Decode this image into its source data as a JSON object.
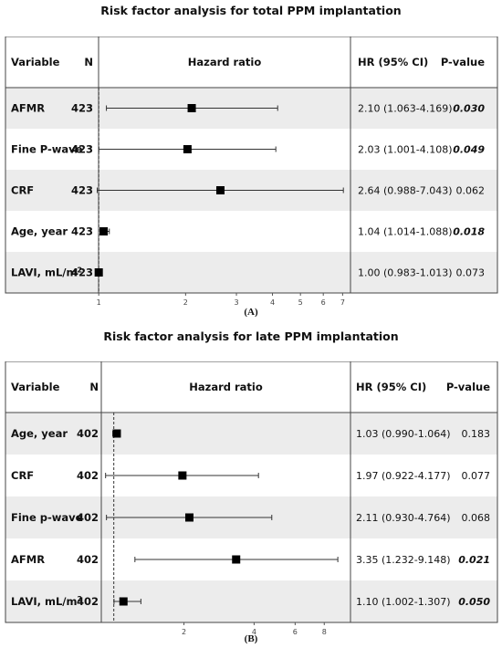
{
  "chart_data": [
    {
      "type": "forest",
      "title": "Risk factor analysis for total PPM implantation",
      "panel_label": "(A)",
      "headers": {
        "variable": "Variable",
        "n": "N",
        "plot": "Hazard ratio",
        "hr": "HR (95% CI)",
        "p": "P-value"
      },
      "x_scale": "log",
      "xlim": [
        0.97,
        7.4
      ],
      "x_ticks": [
        1,
        2,
        3,
        4,
        5,
        6,
        7
      ],
      "x_tick_labels": [
        "1",
        "2",
        "3",
        "4",
        "5",
        "6",
        "7"
      ],
      "reference_line": 1,
      "rows": [
        {
          "variable": "AFMR",
          "n": "423",
          "hr": 2.1,
          "lo": 1.063,
          "hi": 4.169,
          "hr_text": "2.10 (1.063-4.169)",
          "p": "0.030",
          "significant": true
        },
        {
          "variable": "Fine P-wave",
          "n": "423",
          "hr": 2.03,
          "lo": 1.001,
          "hi": 4.108,
          "hr_text": "2.03 (1.001-4.108)",
          "p": "0.049",
          "significant": true
        },
        {
          "variable": "CRF",
          "n": "423",
          "hr": 2.64,
          "lo": 0.988,
          "hi": 7.043,
          "hr_text": "2.64 (0.988-7.043)",
          "p": "0.062",
          "significant": false
        },
        {
          "variable": "Age, year",
          "n": "423",
          "hr": 1.04,
          "lo": 1.014,
          "hi": 1.088,
          "hr_text": "1.04 (1.014-1.088)",
          "p": "0.018",
          "significant": true
        },
        {
          "variable": "LAVI, mL/m",
          "superscript": "2",
          "n": "423",
          "hr": 1.0,
          "lo": 0.983,
          "hi": 1.013,
          "hr_text": "1.00 (0.983-1.013)",
          "p": "0.073",
          "significant": false
        }
      ]
    },
    {
      "type": "forest",
      "title": "Risk factor analysis for late PPM implantation",
      "panel_label": "(B)",
      "headers": {
        "variable": "Variable",
        "n": "N",
        "plot": "Hazard ratio",
        "hr": "HR (95% CI)",
        "p": "P-value"
      },
      "x_scale": "log",
      "xlim": [
        0.9,
        10
      ],
      "x_ticks": [
        2,
        4,
        6,
        8
      ],
      "x_tick_labels": [
        "2",
        "4",
        "6",
        "8"
      ],
      "reference_line": 1,
      "rows": [
        {
          "variable": "Age, year",
          "n": "402",
          "hr": 1.03,
          "lo": 0.99,
          "hi": 1.064,
          "hr_text": "1.03 (0.990-1.064)",
          "p": "0.183",
          "significant": false
        },
        {
          "variable": "CRF",
          "n": "402",
          "hr": 1.97,
          "lo": 0.922,
          "hi": 4.177,
          "hr_text": "1.97 (0.922-4.177)",
          "p": "0.077",
          "significant": false
        },
        {
          "variable": "Fine p-wave",
          "n": "402",
          "hr": 2.11,
          "lo": 0.93,
          "hi": 4.764,
          "hr_text": "2.11 (0.930-4.764)",
          "p": "0.068",
          "significant": false
        },
        {
          "variable": "AFMR",
          "n": "402",
          "hr": 3.35,
          "lo": 1.232,
          "hi": 9.148,
          "hr_text": "3.35 (1.232-9.148)",
          "p": "0.021",
          "significant": true
        },
        {
          "variable": "LAVI, mL/m",
          "superscript": "2",
          "n": "402",
          "hr": 1.1,
          "lo": 1.002,
          "hi": 1.307,
          "hr_text": "1.10 (1.002-1.307)",
          "p": "0.050",
          "significant": true
        }
      ]
    }
  ],
  "colors": {
    "stripe": "#ececec",
    "border": "#444444",
    "marker": "#000000",
    "text": "#111111"
  }
}
